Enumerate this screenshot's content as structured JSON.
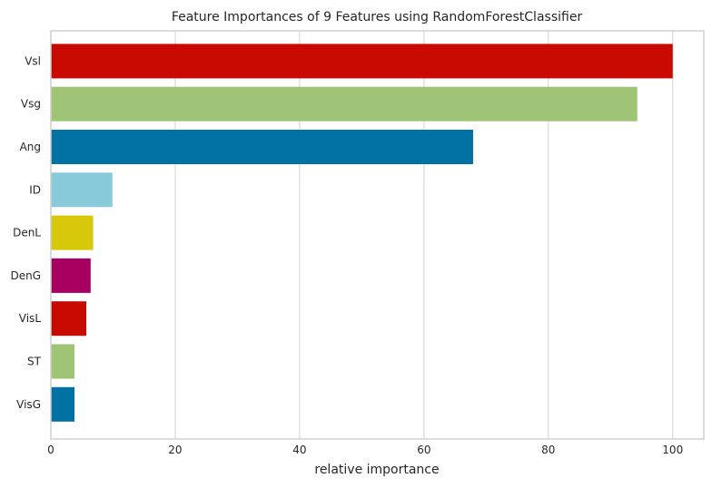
{
  "chart_data": {
    "type": "bar",
    "orientation": "horizontal",
    "title": "Feature Importances of 9 Features using RandomForestClassifier",
    "xlabel": "relative importance",
    "ylabel": "",
    "xlim": [
      0,
      105
    ],
    "xticks": [
      0,
      20,
      40,
      60,
      80,
      100
    ],
    "grid": true,
    "categories": [
      "Vsl",
      "Vsg",
      "Ang",
      "ID",
      "DenL",
      "DenG",
      "VisL",
      "ST",
      "VisG"
    ],
    "values": [
      100,
      94.3,
      67.9,
      9.9,
      6.8,
      6.4,
      5.7,
      3.8,
      3.8
    ],
    "colors": [
      "#c90a02",
      "#a0c476",
      "#0172a3",
      "#88cada",
      "#d8c80a",
      "#a70060",
      "#c90a02",
      "#a0c476",
      "#0172a3"
    ],
    "background_color": "#ffffff",
    "grid_color": "#d9d9d9",
    "axis_color": "#d0d0d0",
    "text_color": "#262626"
  }
}
